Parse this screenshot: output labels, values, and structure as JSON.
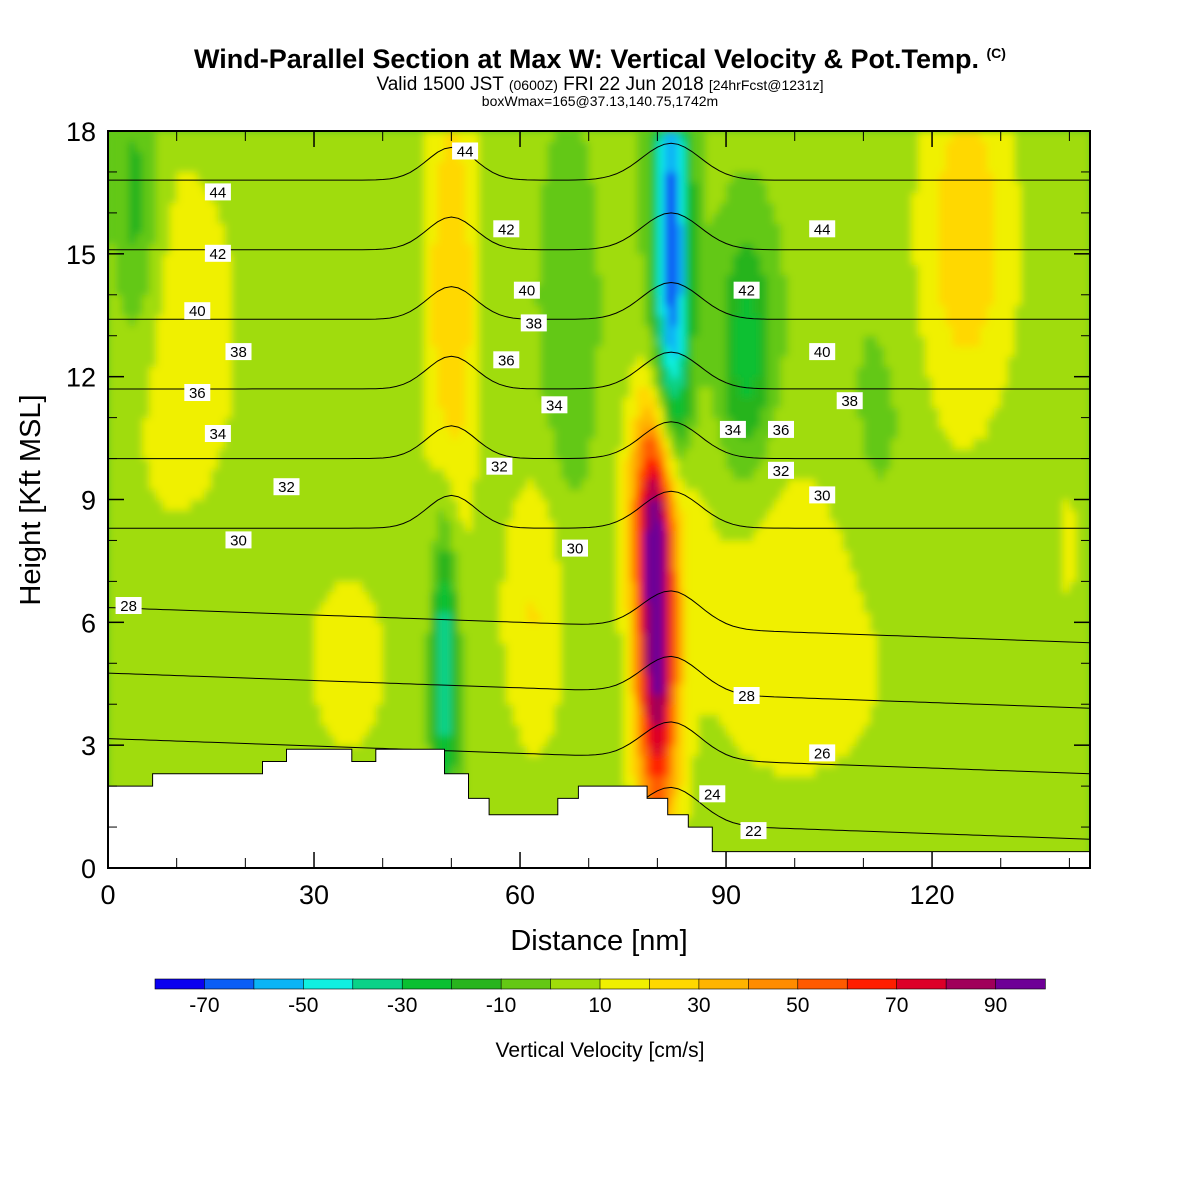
{
  "title": {
    "main": "Wind-Parallel Section at Max W: Vertical Velocity & Pot.Temp.",
    "copyright": "(C)",
    "valid_prefix": "Valid 1500 JST",
    "valid_zulu": "(0600Z)",
    "valid_date": "FRI 22 Jun 2018",
    "forecast": "[24hrFcst@1231z]",
    "boxw": "boxWmax=165@37.13,140.75,1742m"
  },
  "chart_data": {
    "type": "heatmap",
    "title": "Wind-Parallel Section at Max W: Vertical Velocity & Pot.Temp.",
    "xlabel": "Distance [nm]",
    "ylabel": "Height [Kft MSL]",
    "xlim": [
      0,
      143
    ],
    "ylim": [
      0,
      18
    ],
    "x_ticks": [
      0,
      30,
      60,
      90,
      120
    ],
    "x_tick_labels": [
      "0",
      "30",
      "60",
      "90",
      "120"
    ],
    "y_ticks": [
      0,
      3,
      6,
      9,
      12,
      15,
      18
    ],
    "y_tick_labels": [
      "0",
      "3",
      "6",
      "9",
      "12",
      "15",
      "18"
    ],
    "colorbar": {
      "label": "Vertical Velocity [cm/s]",
      "boundaries": [
        -80,
        -70,
        -60,
        -50,
        -40,
        -30,
        -20,
        -10,
        0,
        10,
        20,
        30,
        40,
        50,
        60,
        70,
        80,
        90,
        100
      ],
      "colors": [
        "#0a00f0",
        "#0a5ef5",
        "#0ab4f5",
        "#10f0e0",
        "#0ad288",
        "#0ac032",
        "#28b41e",
        "#64c814",
        "#a0dc0a",
        "#f0f000",
        "#ffd800",
        "#ffb400",
        "#ff8c00",
        "#ff5a00",
        "#ff1e00",
        "#dc0028",
        "#a0005a",
        "#6e0096"
      ],
      "tick_values": [
        -70,
        -50,
        -30,
        -10,
        10,
        30,
        50,
        70,
        90
      ],
      "tick_labels": [
        "-70",
        "-50",
        "-30",
        "-10",
        "10",
        "30",
        "50",
        "70",
        "90"
      ]
    },
    "features": [
      {
        "name": "strong updraft core",
        "x": 80,
        "y_range": [
          2.5,
          10
        ],
        "max_w": 95
      },
      {
        "name": "upper updraft band",
        "x": 50,
        "y_range": [
          9,
          18
        ],
        "max_w": 35
      },
      {
        "name": "low-level updraft",
        "x": 62,
        "y_range": [
          3,
          8
        ],
        "max_w": 30
      },
      {
        "name": "upper downdraft",
        "x": 82,
        "y_range": [
          11,
          18
        ],
        "max_w": -60
      },
      {
        "name": "upper-right updraft",
        "x": 125,
        "y_range": [
          11,
          18
        ],
        "max_w": 25
      },
      {
        "name": "low-level downdraft",
        "x": 49,
        "y_range": [
          3,
          7
        ],
        "max_w": -35
      }
    ],
    "theta_contours": {
      "levels": [
        22,
        24,
        26,
        28,
        30,
        32,
        34,
        36,
        38,
        40,
        42,
        44
      ],
      "labels": [
        {
          "text": "44",
          "x": 16,
          "y": 16.5
        },
        {
          "text": "42",
          "x": 16,
          "y": 15.0
        },
        {
          "text": "40",
          "x": 13,
          "y": 13.6
        },
        {
          "text": "38",
          "x": 19,
          "y": 12.6
        },
        {
          "text": "36",
          "x": 13,
          "y": 11.6
        },
        {
          "text": "34",
          "x": 16,
          "y": 10.6
        },
        {
          "text": "32",
          "x": 26,
          "y": 9.3
        },
        {
          "text": "30",
          "x": 19,
          "y": 8.0
        },
        {
          "text": "28",
          "x": 3,
          "y": 6.4
        },
        {
          "text": "44",
          "x": 52,
          "y": 17.5
        },
        {
          "text": "42",
          "x": 58,
          "y": 15.6
        },
        {
          "text": "40",
          "x": 61,
          "y": 14.1
        },
        {
          "text": "38",
          "x": 62,
          "y": 13.3
        },
        {
          "text": "36",
          "x": 58,
          "y": 12.4
        },
        {
          "text": "34",
          "x": 65,
          "y": 11.3
        },
        {
          "text": "32",
          "x": 57,
          "y": 9.8
        },
        {
          "text": "30",
          "x": 68,
          "y": 7.8
        },
        {
          "text": "44",
          "x": 104,
          "y": 15.6
        },
        {
          "text": "42",
          "x": 93,
          "y": 14.1
        },
        {
          "text": "40",
          "x": 104,
          "y": 12.6
        },
        {
          "text": "38",
          "x": 108,
          "y": 11.4
        },
        {
          "text": "34",
          "x": 91,
          "y": 10.7
        },
        {
          "text": "36",
          "x": 98,
          "y": 10.7
        },
        {
          "text": "32",
          "x": 98,
          "y": 9.7
        },
        {
          "text": "30",
          "x": 104,
          "y": 9.1
        },
        {
          "text": "28",
          "x": 93,
          "y": 4.2
        },
        {
          "text": "26",
          "x": 104,
          "y": 2.8
        },
        {
          "text": "24",
          "x": 88,
          "y": 1.8
        },
        {
          "text": "22",
          "x": 94,
          "y": 0.9
        }
      ]
    },
    "terrain_kft": [
      [
        0,
        2.0
      ],
      [
        6.5,
        2.0
      ],
      [
        6.5,
        2.3
      ],
      [
        22.5,
        2.3
      ],
      [
        22.5,
        2.6
      ],
      [
        26,
        2.6
      ],
      [
        26,
        2.9
      ],
      [
        35.5,
        2.9
      ],
      [
        35.5,
        2.6
      ],
      [
        39,
        2.6
      ],
      [
        39,
        2.9
      ],
      [
        49,
        2.9
      ],
      [
        49,
        2.3
      ],
      [
        52.5,
        2.3
      ],
      [
        52.5,
        1.7
      ],
      [
        55.5,
        1.7
      ],
      [
        55.5,
        1.3
      ],
      [
        65.5,
        1.3
      ],
      [
        65.5,
        1.7
      ],
      [
        68.5,
        1.7
      ],
      [
        68.5,
        2.0
      ],
      [
        78.5,
        2.0
      ],
      [
        78.5,
        1.7
      ],
      [
        81.5,
        1.7
      ],
      [
        81.5,
        1.3
      ],
      [
        84.5,
        1.3
      ],
      [
        84.5,
        1.0
      ],
      [
        88,
        1.0
      ],
      [
        88,
        0.4
      ],
      [
        143,
        0.4
      ]
    ]
  }
}
